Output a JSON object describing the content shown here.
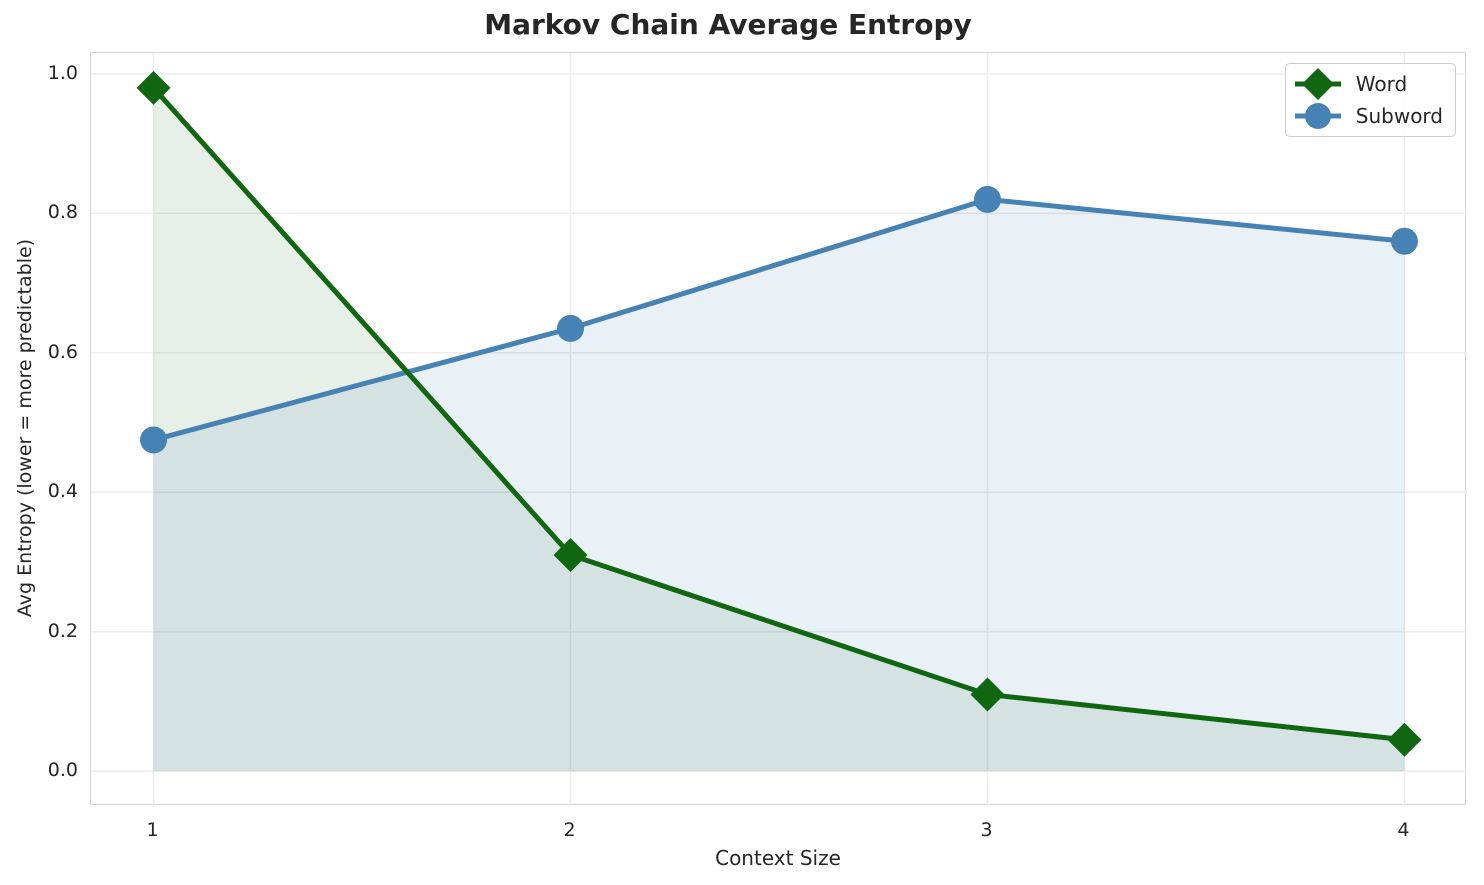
{
  "colors": {
    "background": "#ffffff",
    "text": "#262626",
    "grid": "#ececec",
    "spine": "#d5d5d5",
    "legend_border": "#cccccc"
  },
  "chart_data": {
    "type": "line",
    "title": "Markov Chain Average Entropy",
    "xlabel": "Context Size",
    "ylabel": "Avg Entropy (lower = more predictable)",
    "x": [
      1,
      2,
      3,
      4
    ],
    "xtick_labels": [
      "1",
      "2",
      "3",
      "4"
    ],
    "yticks": [
      0.0,
      0.2,
      0.4,
      0.6,
      0.8,
      1.0
    ],
    "ytick_labels": [
      "0.0",
      "0.2",
      "0.4",
      "0.6",
      "0.8",
      "1.0"
    ],
    "xlim": [
      0.85,
      4.15
    ],
    "ylim": [
      -0.05,
      1.03
    ],
    "grid": true,
    "legend_position": "upper right",
    "fill_baseline": 0,
    "series": [
      {
        "name": "Word",
        "color": "#0f670f",
        "marker": "diamond",
        "line_width": 5,
        "fill_alpha": 0.1,
        "values": [
          0.98,
          0.31,
          0.11,
          0.045
        ]
      },
      {
        "name": "Subword",
        "color": "#4682b4",
        "marker": "circle",
        "line_width": 5,
        "fill_alpha": 0.12,
        "values": [
          0.475,
          0.635,
          0.82,
          0.76
        ]
      }
    ]
  }
}
